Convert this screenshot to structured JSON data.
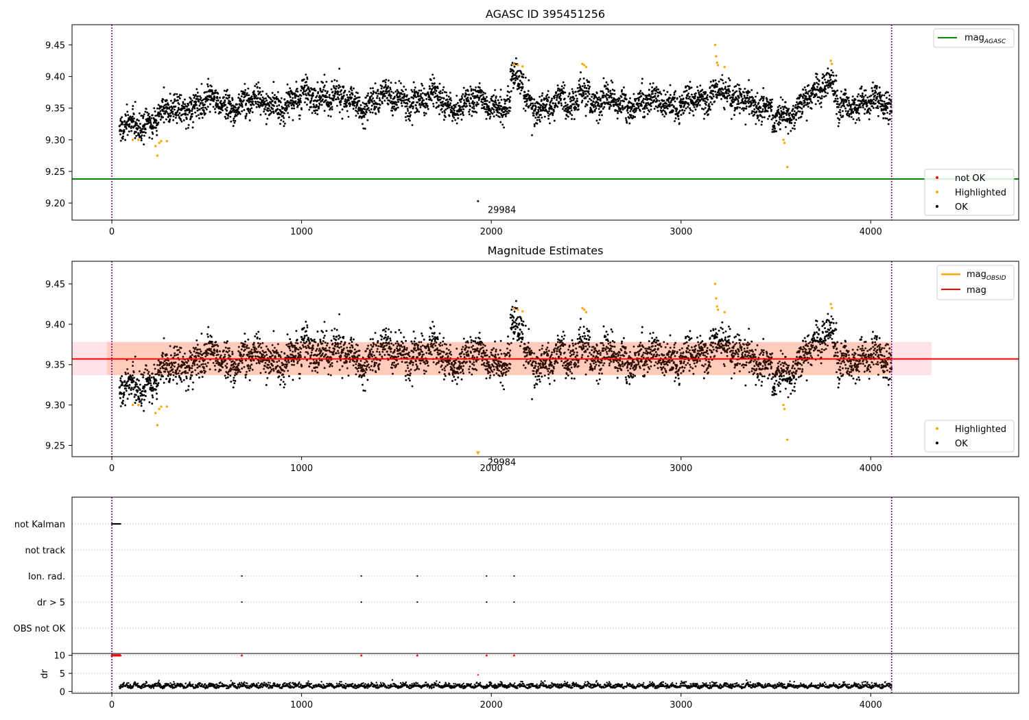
{
  "figure": {
    "title_top": "AGASC ID 395451256",
    "title_middle": "Magnitude Estimates",
    "colors": {
      "ok": "#000000",
      "highlighted": "#ffa500",
      "not_ok": "#ff0000",
      "mag_agasc_line": "#008000",
      "mag_line": "#ff0000",
      "mag_obsid_line": "#ffa500",
      "band_fill": "#ffc0cb",
      "band_inner": "#ffdab9",
      "vline": "#800080",
      "grid": "#b0b0b0"
    }
  },
  "chart_data": [
    {
      "type": "scatter",
      "title": "AGASC ID 395451256",
      "xlim": [
        -210,
        4780
      ],
      "ylim": [
        9.173,
        9.482
      ],
      "xticks": [
        0,
        1000,
        2000,
        3000,
        4000
      ],
      "yticks": [
        9.2,
        9.25,
        9.3,
        9.35,
        9.4,
        9.45
      ],
      "xtick_labels": [
        "0",
        "1000",
        "2000",
        "3000",
        "4000"
      ],
      "ytick_labels": [
        "9.20",
        "9.25",
        "9.30",
        "9.35",
        "9.40",
        "9.45"
      ],
      "mag_agasc": 9.238,
      "vlines": [
        0,
        4110
      ],
      "series": [
        {
          "name": "OK",
          "description": "~4100 samples, mean 9.357, std ~0.02"
        },
        {
          "name": "Highlighted",
          "values_approx": [
            [
              110,
              9.3
            ],
            [
              140,
              9.3
            ],
            [
              230,
              9.29
            ],
            [
              240,
              9.275
            ],
            [
              250,
              9.295
            ],
            [
              260,
              9.298
            ],
            [
              290,
              9.298
            ],
            [
              2120,
              9.419
            ],
            [
              2140,
              9.418
            ],
            [
              2165,
              9.416
            ],
            [
              2480,
              9.42
            ],
            [
              2490,
              9.418
            ],
            [
              2500,
              9.415
            ],
            [
              3180,
              9.45
            ],
            [
              3185,
              9.432
            ],
            [
              3190,
              9.422
            ],
            [
              3195,
              9.418
            ],
            [
              3230,
              9.415
            ],
            [
              3540,
              9.3
            ],
            [
              3545,
              9.295
            ],
            [
              3560,
              9.257
            ],
            [
              3790,
              9.425
            ],
            [
              3795,
              9.42
            ]
          ]
        },
        {
          "name": "not OK",
          "values": []
        }
      ],
      "annotation": {
        "text": "29984",
        "x": 1930,
        "y": 9.203
      },
      "legend_upper": [
        {
          "label": "mag",
          "subscript": "AGASC"
        }
      ],
      "legend_lower": [
        "not OK",
        "Highlighted",
        "OK"
      ],
      "legend_placement": [
        "upper right",
        "lower right"
      ]
    },
    {
      "type": "scatter",
      "title": "Magnitude Estimates",
      "xlim": [
        -210,
        4780
      ],
      "ylim": [
        9.236,
        9.478
      ],
      "xticks": [
        0,
        1000,
        2000,
        3000,
        4000
      ],
      "yticks": [
        9.25,
        9.3,
        9.35,
        9.4,
        9.45
      ],
      "xtick_labels": [
        "0",
        "1000",
        "2000",
        "3000",
        "4000"
      ],
      "ytick_labels": [
        "9.25",
        "9.30",
        "9.35",
        "9.40",
        "9.45"
      ],
      "mag": 9.357,
      "mag_band": [
        9.337,
        9.378
      ],
      "mag_band_x": [
        -210,
        4320
      ],
      "vlines": [
        0,
        4110
      ],
      "annotation": {
        "text": "29984",
        "x": 1930,
        "y": 9.24
      },
      "legend_upper": [
        {
          "label": "mag",
          "subscript": "OBSID"
        },
        {
          "label": "mag",
          "subscript": ""
        }
      ],
      "legend_lower": [
        "Highlighted",
        "OK"
      ],
      "legend_placement": [
        "upper right",
        "lower right"
      ]
    },
    {
      "type": "scatter",
      "xlim": [
        -210,
        4780
      ],
      "categories": [
        "not Kalman",
        "not track",
        "Ion. rad.",
        "dr > 5",
        "OBS not OK"
      ],
      "flag_points": {
        "not Kalman": [
          [
            0,
            45
          ]
        ],
        "not track": [],
        "Ion. rad.": [
          685,
          1315,
          1610,
          1975,
          2120
        ],
        "dr > 5": [
          685,
          1315,
          1610,
          1975,
          2120
        ],
        "OBS not OK": []
      },
      "vlines": [
        0,
        4110
      ]
    },
    {
      "type": "scatter",
      "ylabel": "dr",
      "xlim": [
        -210,
        4780
      ],
      "ylim": [
        -0.5,
        10.5
      ],
      "yticks": [
        0,
        5,
        10
      ],
      "ytick_labels": [
        "0",
        "5",
        "10"
      ],
      "xticks": [
        0,
        1000,
        2000,
        3000,
        4000
      ],
      "xtick_labels": [
        "0",
        "1000",
        "2000",
        "3000",
        "4000"
      ],
      "clipped_at_10": [
        [
          0,
          45
        ],
        685,
        1315,
        1610,
        1975,
        2120
      ],
      "outlier": [
        1930,
        4.6
      ],
      "vlines": [
        0,
        4110
      ]
    }
  ]
}
